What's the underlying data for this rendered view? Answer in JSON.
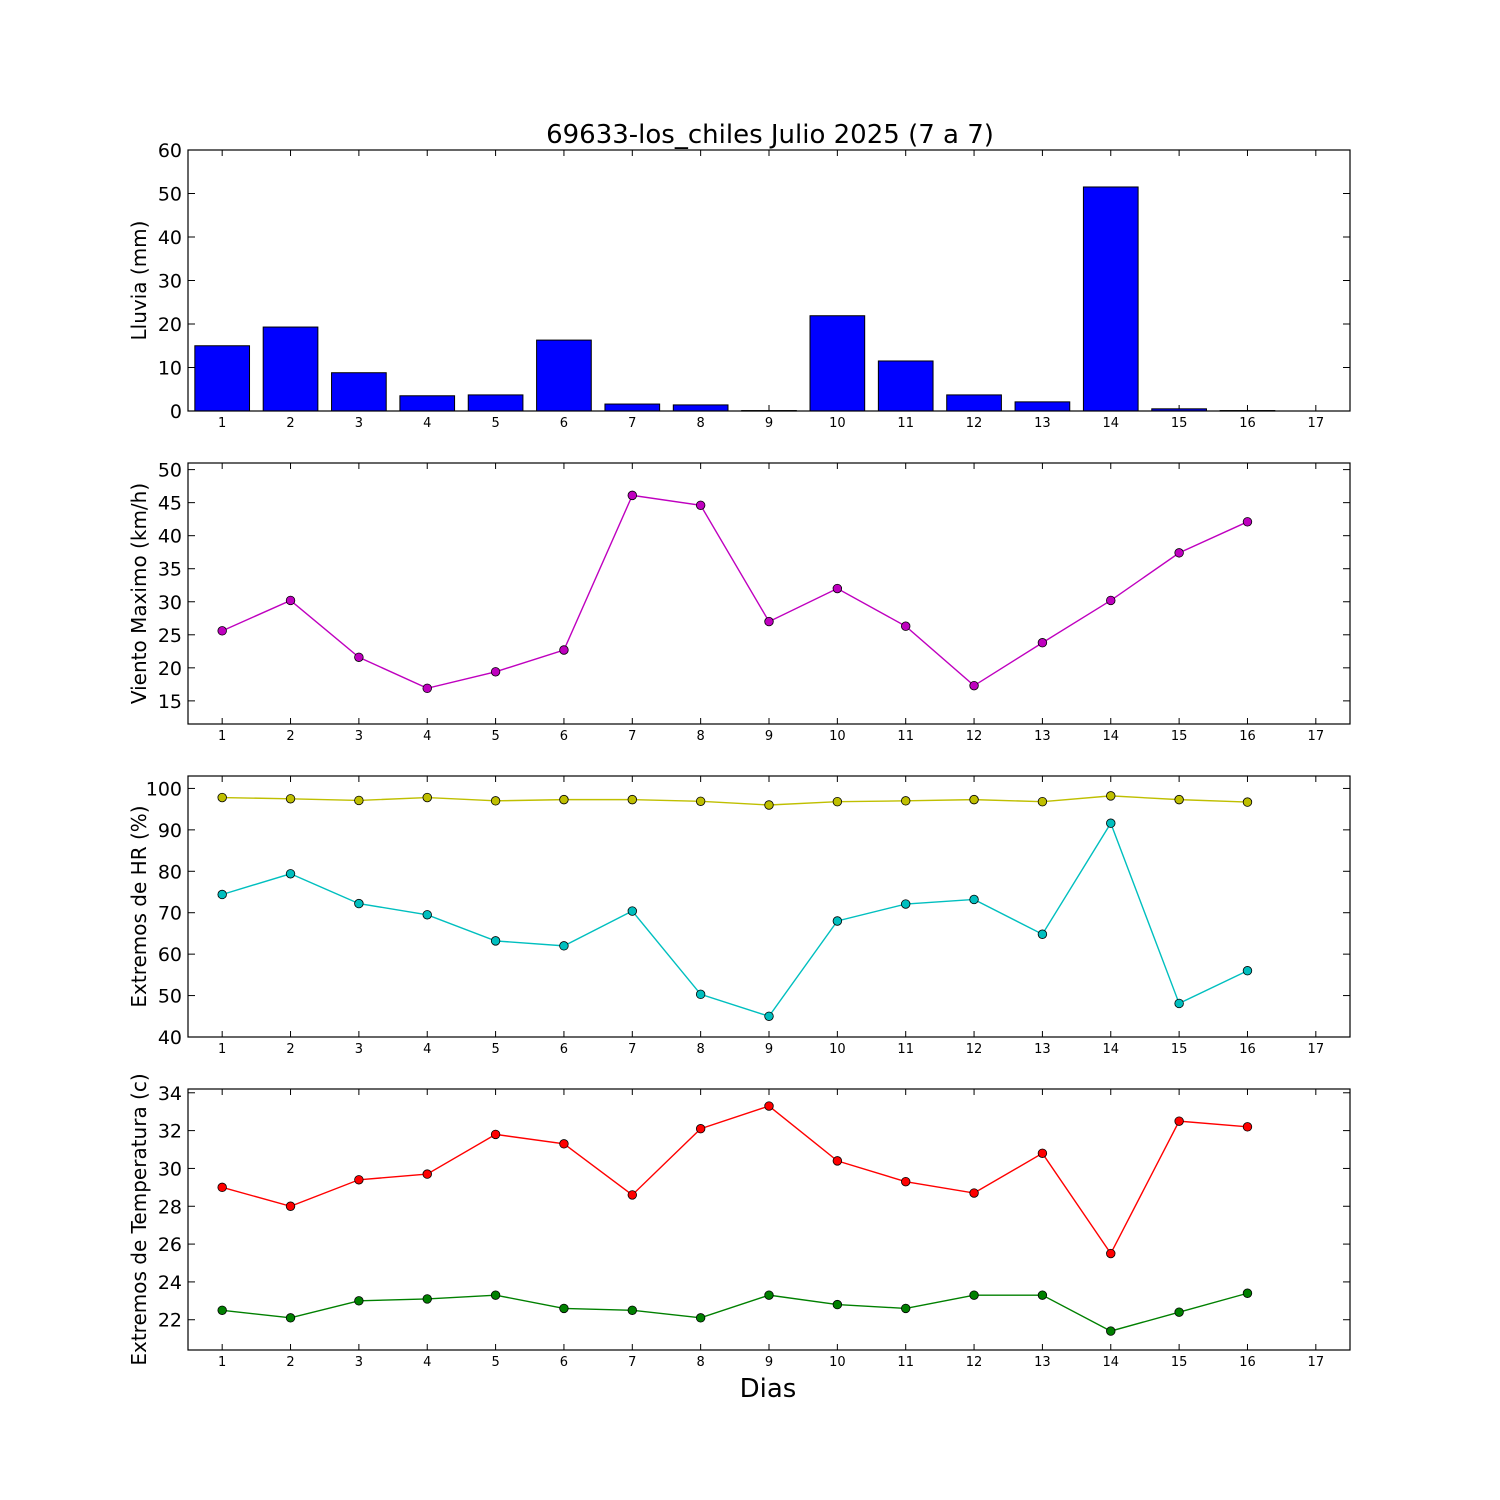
{
  "figure": {
    "title": "69633-los_chiles Julio 2025  (7 a 7)",
    "xlabel": "Dias"
  },
  "chart_data": [
    {
      "type": "bar",
      "ylabel": "Lluvia (mm)",
      "xlim": [
        0.5,
        17.5
      ],
      "ylim": [
        0,
        60
      ],
      "yticks": [
        0,
        10,
        20,
        30,
        40,
        50,
        60
      ],
      "xticks": [
        1,
        2,
        3,
        4,
        5,
        6,
        7,
        8,
        9,
        10,
        11,
        12,
        13,
        14,
        15,
        16,
        17
      ],
      "x": [
        1,
        2,
        3,
        4,
        5,
        6,
        7,
        8,
        9,
        10,
        11,
        12,
        13,
        14,
        15,
        16
      ],
      "values": [
        15.0,
        19.3,
        8.8,
        3.5,
        3.7,
        16.3,
        1.6,
        1.4,
        0.1,
        21.9,
        11.5,
        3.7,
        2.1,
        51.5,
        0.5,
        0.1
      ],
      "color": "#0000ff"
    },
    {
      "type": "line",
      "ylabel": "Viento Maximo (km/h)",
      "xlim": [
        0.5,
        17.5
      ],
      "ylim": [
        11.5,
        51
      ],
      "yticks": [
        15,
        20,
        25,
        30,
        35,
        40,
        45,
        50
      ],
      "xticks": [
        1,
        2,
        3,
        4,
        5,
        6,
        7,
        8,
        9,
        10,
        11,
        12,
        13,
        14,
        15,
        16,
        17
      ],
      "series": [
        {
          "x": [
            1,
            2,
            3,
            4,
            5,
            6,
            7,
            8,
            9,
            10,
            11,
            12,
            13,
            14,
            15,
            16
          ],
          "values": [
            25.6,
            30.2,
            21.6,
            16.9,
            19.4,
            22.7,
            46.1,
            44.6,
            27.0,
            32.0,
            26.3,
            17.3,
            23.8,
            30.2,
            37.4,
            42.1
          ],
          "color": "#bf00bf"
        }
      ]
    },
    {
      "type": "line",
      "ylabel": "Extremos de HR (%)",
      "xlim": [
        0.5,
        17.5
      ],
      "ylim": [
        40,
        103
      ],
      "yticks": [
        40,
        50,
        60,
        70,
        80,
        90,
        100
      ],
      "xticks": [
        1,
        2,
        3,
        4,
        5,
        6,
        7,
        8,
        9,
        10,
        11,
        12,
        13,
        14,
        15,
        16,
        17
      ],
      "series": [
        {
          "x": [
            1,
            2,
            3,
            4,
            5,
            6,
            7,
            8,
            9,
            10,
            11,
            12,
            13,
            14,
            15,
            16
          ],
          "values": [
            97.8,
            97.5,
            97.1,
            97.8,
            97.0,
            97.3,
            97.3,
            96.9,
            96.0,
            96.8,
            97.0,
            97.3,
            96.8,
            98.2,
            97.3,
            96.7
          ],
          "color": "#bfbf00"
        },
        {
          "x": [
            1,
            2,
            3,
            4,
            5,
            6,
            7,
            8,
            9,
            10,
            11,
            12,
            13,
            14,
            15,
            16
          ],
          "values": [
            74.4,
            79.4,
            72.2,
            69.5,
            63.2,
            62.0,
            70.4,
            50.3,
            45.0,
            68.0,
            72.1,
            73.2,
            64.8,
            91.6,
            48.1,
            56.0
          ],
          "color": "#00bfbf"
        }
      ]
    },
    {
      "type": "line",
      "ylabel": "Extremos de Temperatura (c)",
      "xlim": [
        0.5,
        17.5
      ],
      "ylim": [
        20.4,
        34.2
      ],
      "yticks": [
        22,
        24,
        26,
        28,
        30,
        32,
        34
      ],
      "xticks": [
        1,
        2,
        3,
        4,
        5,
        6,
        7,
        8,
        9,
        10,
        11,
        12,
        13,
        14,
        15,
        16,
        17
      ],
      "series": [
        {
          "x": [
            1,
            2,
            3,
            4,
            5,
            6,
            7,
            8,
            9,
            10,
            11,
            12,
            13,
            14,
            15,
            16
          ],
          "values": [
            29.0,
            28.0,
            29.4,
            29.7,
            31.8,
            31.3,
            28.6,
            32.1,
            33.3,
            30.4,
            29.3,
            28.7,
            30.8,
            25.5,
            32.5,
            32.2
          ],
          "color": "#ff0000"
        },
        {
          "x": [
            1,
            2,
            3,
            4,
            5,
            6,
            7,
            8,
            9,
            10,
            11,
            12,
            13,
            14,
            15,
            16
          ],
          "values": [
            22.5,
            22.1,
            23.0,
            23.1,
            23.3,
            22.6,
            22.5,
            22.1,
            23.3,
            22.8,
            22.6,
            23.3,
            23.3,
            21.4,
            22.4,
            23.4
          ],
          "color": "#008000"
        }
      ]
    }
  ]
}
